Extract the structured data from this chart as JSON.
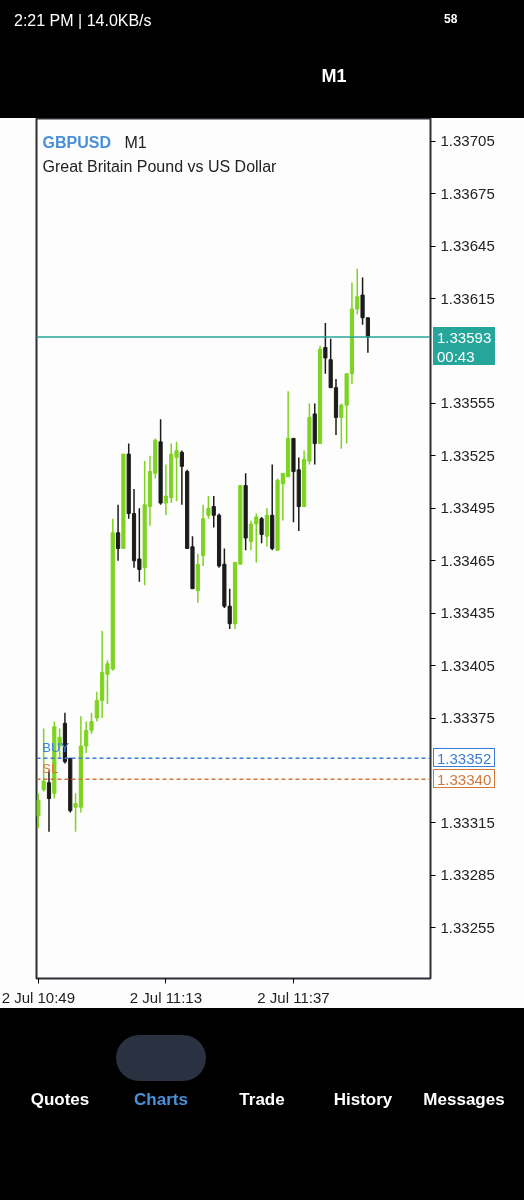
{
  "chart_data": {
    "type": "candlestick",
    "title": "GBPUSD",
    "subtitle": "Great Britain Pound vs US Dollar",
    "categories": [
      "2 Jul 10:49",
      null,
      null,
      null,
      null,
      null,
      null,
      null,
      null,
      null,
      null,
      null,
      null,
      null,
      null,
      null,
      null,
      null,
      null,
      null,
      null,
      null,
      null,
      null,
      "2 Jul 11:13",
      null,
      null,
      null,
      null,
      null,
      null,
      null,
      null,
      null,
      null,
      null,
      null,
      null,
      null,
      null,
      null,
      null,
      null,
      null,
      null,
      null,
      null,
      null,
      "2 Jul 11:37",
      null,
      null,
      null,
      null,
      null,
      null,
      null,
      null,
      null,
      null,
      null,
      null,
      null,
      null
    ],
    "ohlc": [
      [
        1.33319,
        1.33332,
        1.33312,
        1.33328
      ],
      [
        1.33334,
        1.33369,
        1.33333,
        1.33339
      ],
      [
        1.33338,
        1.33345,
        1.3331,
        1.33329
      ],
      [
        1.33332,
        1.33373,
        1.33329,
        1.3337
      ],
      [
        1.33359,
        1.33369,
        1.33352,
        1.33364
      ],
      [
        1.33372,
        1.33378,
        1.33349,
        1.3335
      ],
      [
        1.33352,
        1.33352,
        1.33321,
        1.33322
      ],
      [
        1.33324,
        1.33332,
        1.3331,
        1.33326
      ],
      [
        1.33324,
        1.33376,
        1.33321,
        1.33359
      ],
      [
        1.33359,
        1.33373,
        1.33355,
        1.33368
      ],
      [
        1.33368,
        1.33378,
        1.33366,
        1.33373
      ],
      [
        1.33375,
        1.3339,
        1.33373,
        1.33385
      ],
      [
        1.33385,
        1.33425,
        1.33375,
        1.33401
      ],
      [
        1.334,
        1.33408,
        1.33383,
        1.33406
      ],
      [
        1.33403,
        1.33489,
        1.33402,
        1.33481
      ],
      [
        1.33481,
        1.33497,
        1.33465,
        1.33472
      ],
      [
        1.33472,
        1.33526,
        1.33472,
        1.33526
      ],
      [
        1.33526,
        1.33532,
        1.33489,
        1.33492
      ],
      [
        1.33492,
        1.33506,
        1.33461,
        1.33465
      ],
      [
        1.33466,
        1.33495,
        1.33453,
        1.3346
      ],
      [
        1.33461,
        1.33522,
        1.33451,
        1.33497
      ],
      [
        1.33496,
        1.33525,
        1.33485,
        1.33516
      ],
      [
        1.33515,
        1.33535,
        1.33512,
        1.33534
      ],
      [
        1.33533,
        1.33546,
        1.33497,
        1.33498
      ],
      [
        1.33498,
        1.3352,
        1.33491,
        1.33502
      ],
      [
        1.33501,
        1.33532,
        1.33498,
        1.33526
      ],
      [
        1.33524,
        1.33533,
        1.33499,
        1.33528
      ],
      [
        1.33527,
        1.33528,
        1.33497,
        1.33519
      ],
      [
        1.33516,
        1.33517,
        1.33472,
        1.33472
      ],
      [
        1.33473,
        1.33479,
        1.33449,
        1.33449
      ],
      [
        1.33448,
        1.33469,
        1.33441,
        1.33463
      ],
      [
        1.33468,
        1.33497,
        1.33462,
        1.33489
      ],
      [
        1.33491,
        1.33502,
        1.33489,
        1.33495
      ],
      [
        1.33496,
        1.33502,
        1.33484,
        1.33491
      ],
      [
        1.33491,
        1.33492,
        1.33461,
        1.33462
      ],
      [
        1.33463,
        1.33472,
        1.33438,
        1.33439
      ],
      [
        1.33439,
        1.33449,
        1.33426,
        1.33429
      ],
      [
        1.33429,
        1.33464,
        1.33426,
        1.33464
      ],
      [
        1.33463,
        1.33508,
        1.33463,
        1.33508
      ],
      [
        1.33508,
        1.33515,
        1.33471,
        1.33478
      ],
      [
        1.33476,
        1.33488,
        1.33471,
        1.33486
      ],
      [
        1.33486,
        1.33492,
        1.33464,
        1.3349
      ],
      [
        1.33489,
        1.3349,
        1.33475,
        1.3348
      ],
      [
        1.33479,
        1.33495,
        1.33473,
        1.33491
      ],
      [
        1.33491,
        1.3352,
        1.33471,
        1.33472
      ],
      [
        1.33471,
        1.33512,
        1.33471,
        1.33511
      ],
      [
        1.33509,
        1.33515,
        1.33488,
        1.33515
      ],
      [
        1.33513,
        1.33562,
        1.33513,
        1.33535
      ],
      [
        1.33535,
        1.33535,
        1.33487,
        1.33516
      ],
      [
        1.33517,
        1.33524,
        1.33482,
        1.33496
      ],
      [
        1.33496,
        1.33528,
        1.33496,
        1.33523
      ],
      [
        1.33522,
        1.33555,
        1.3352,
        1.33547
      ],
      [
        1.33549,
        1.33555,
        1.3352,
        1.33532
      ],
      [
        1.33532,
        1.33588,
        1.33532,
        1.33586
      ],
      [
        1.33587,
        1.33601,
        1.33572,
        1.33581
      ],
      [
        1.3358,
        1.33592,
        1.33564,
        1.33564
      ],
      [
        1.33564,
        1.33569,
        1.33537,
        1.33547
      ],
      [
        1.33547,
        1.33555,
        1.33529,
        1.33554
      ],
      [
        1.33554,
        1.33572,
        1.33532,
        1.33572
      ],
      [
        1.33572,
        1.33624,
        1.33566,
        1.33609
      ],
      [
        1.33609,
        1.33632,
        1.33606,
        1.33616
      ],
      [
        1.33617,
        1.33627,
        1.336,
        1.33604
      ],
      [
        1.33604,
        1.33604,
        1.33584,
        1.33593
      ]
    ],
    "colors": [
      "#7ed321",
      "#7ed321",
      "#1b1b1b",
      "#7ed321",
      "#7ed321",
      "#1b1b1b",
      "#1b1b1b",
      "#7ed321",
      "#7ed321",
      "#7ed321",
      "#7ed321",
      "#7ed321",
      "#7ed321",
      "#7ed321",
      "#7ed321",
      "#1b1b1b",
      "#7ed321",
      "#1b1b1b",
      "#1b1b1b",
      "#1b1b1b",
      "#7ed321",
      "#7ed321",
      "#7ed321",
      "#1b1b1b",
      "#7ed321",
      "#7ed321",
      "#7ed321",
      "#1b1b1b",
      "#1b1b1b",
      "#1b1b1b",
      "#7ed321",
      "#7ed321",
      "#7ed321",
      "#1b1b1b",
      "#1b1b1b",
      "#1b1b1b",
      "#1b1b1b",
      "#7ed321",
      "#7ed321",
      "#1b1b1b",
      "#7ed321",
      "#7ed321",
      "#1b1b1b",
      "#7ed321",
      "#1b1b1b",
      "#7ed321",
      "#7ed321",
      "#7ed321",
      "#1b1b1b",
      "#1b1b1b",
      "#7ed321",
      "#7ed321",
      "#1b1b1b",
      "#7ed321",
      "#1b1b1b",
      "#1b1b1b",
      "#1b1b1b",
      "#7ed321",
      "#7ed321",
      "#7ed321",
      "#7ed321",
      "#1b1b1b",
      "#1b1b1b"
    ],
    "ylim": [
      1.33226,
      1.33718
    ],
    "yticks": [
      1.33705,
      1.33675,
      1.33645,
      1.33615,
      1.33555,
      1.33525,
      1.33495,
      1.33465,
      1.33435,
      1.33405,
      1.33375,
      1.33315,
      1.33285,
      1.33255
    ],
    "ref_lines": [
      {
        "axis": "y",
        "value": 1.33593,
        "label": "1.33593\n00:43",
        "color": "#26a69a",
        "line_style": "solid"
      },
      {
        "axis": "y",
        "value": 1.33352,
        "label": "1.33352",
        "color": "#3b7dd8",
        "line_style": "dashed"
      },
      {
        "axis": "y",
        "value": 1.3334,
        "label": "1.33340",
        "color": "#d2773a",
        "line_style": "dashed"
      }
    ],
    "annotations": [
      "M1",
      {
        "text": "BUY",
        "x": "2 Jul 10:49",
        "y": 1.33352
      },
      {
        "text": "SL",
        "x": "2 Jul 10:49",
        "y": 1.3334
      },
      "2:21 PM | 14.0KB/s",
      "58",
      "M1",
      "Quotes",
      "Charts",
      "Trade",
      "History",
      "Messages"
    ],
    "grid": false
  }
}
